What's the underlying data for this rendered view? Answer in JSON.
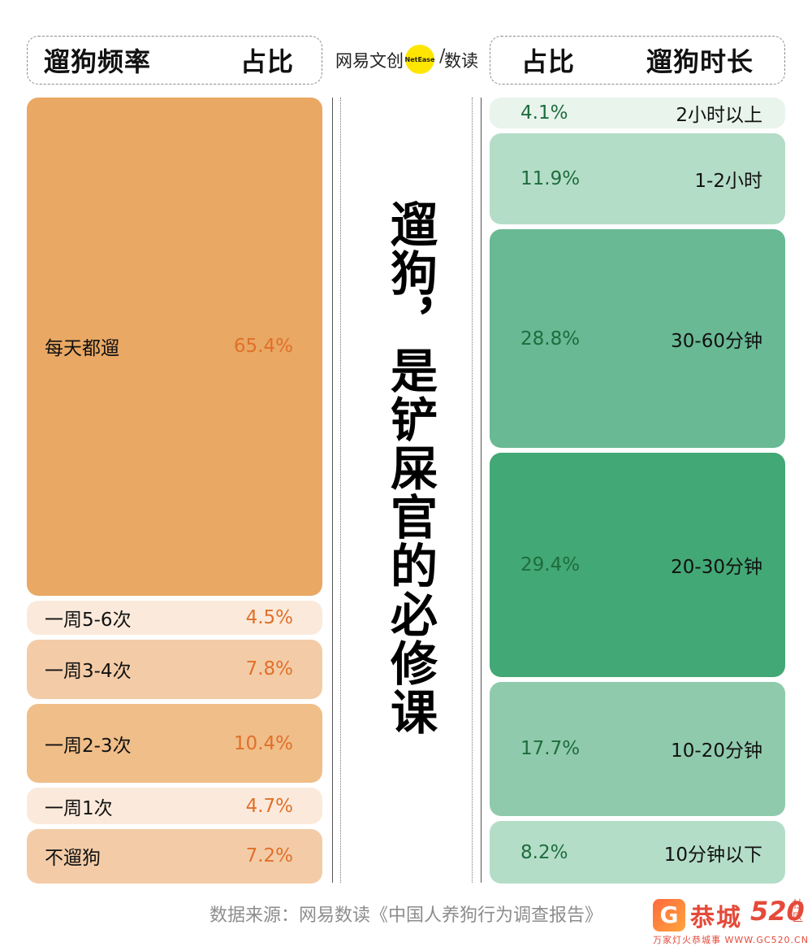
{
  "header": {
    "left_col1": "遛狗频率",
    "left_col2": "占比",
    "right_col1": "占比",
    "right_col2": "遛狗时长"
  },
  "logo": {
    "brand": "网易文创",
    "circle_text": "NetEase",
    "slash": "/",
    "sub": "数读"
  },
  "title": "遛狗，是铲屎官的必修课",
  "source": "数据来源：网易数读《中国人养狗行为调查报告》",
  "watermark": {
    "g": "G",
    "name": "恭城",
    "num": "520",
    "side": "社区",
    "sub": "万家灯火恭城事 WWW.GC520.CN"
  },
  "colors": {
    "orange_dark": "#e9a864",
    "orange_mid": "#f0be89",
    "orange_light": "#f3cca7",
    "orange_pale": "#fbeadb",
    "orange_text": "#e0702a",
    "green_darkest": "#42a875",
    "green_dark": "#68b994",
    "green_mid": "#8fcaac",
    "green_light": "#b4ddc8",
    "green_pale": "#e8f4ec",
    "green_text": "#1e6d3d"
  },
  "chart_data": [
    {
      "type": "bar",
      "orientation": "stacked-vertical",
      "unit": "%",
      "categories": [
        "每天都遛",
        "一周5-6次",
        "一周3-4次",
        "一周2-3次",
        "一周1次",
        "不遛狗"
      ],
      "values": [
        65.4,
        4.5,
        7.8,
        10.4,
        4.7,
        7.2
      ],
      "labels": [
        "65.4%",
        "4.5%",
        "7.8%",
        "10.4%",
        "4.7%",
        "7.2%"
      ]
    },
    {
      "type": "bar",
      "orientation": "stacked-vertical",
      "unit": "%",
      "categories": [
        "2小时以上",
        "1-2小时",
        "30-60分钟",
        "20-30分钟",
        "10-20分钟",
        "10分钟以下"
      ],
      "values": [
        4.1,
        11.9,
        28.8,
        29.4,
        17.7,
        8.2
      ],
      "labels": [
        "4.1%",
        "11.9%",
        "28.8%",
        "29.4%",
        "17.7%",
        "8.2%"
      ]
    }
  ]
}
